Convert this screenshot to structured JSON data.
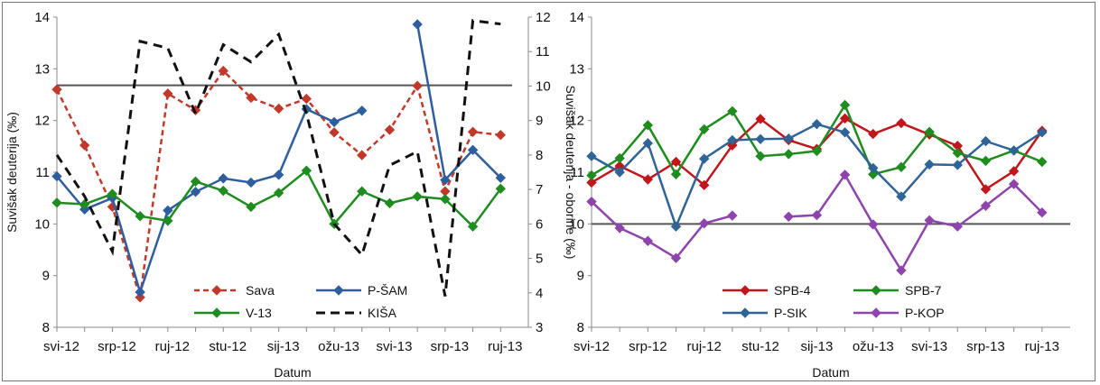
{
  "chart_data": [
    {
      "type": "line",
      "xlabel": "Datum",
      "ylabel": "Suvišak deuterija (‰)",
      "y2label": "Suvišak deuterija - oborine (‰)",
      "xticks": [
        "svi-12",
        "srp-12",
        "ruj-12",
        "stu-12",
        "sij-13",
        "ožu-13",
        "svi-13",
        "srp-13",
        "ruj-13"
      ],
      "ylim": [
        8,
        14
      ],
      "yticks": [
        "8",
        "9",
        "10",
        "11",
        "12",
        "13",
        "14"
      ],
      "y2lim": [
        3,
        12
      ],
      "y2ticks": [
        "3",
        "4",
        "5",
        "6",
        "7",
        "8",
        "9",
        "10",
        "11",
        "12"
      ],
      "xlim": [
        0,
        17
      ],
      "reference_line": 12.68,
      "series": [
        {
          "name": "Sava",
          "axis": "left",
          "color": "#c0392b",
          "style": "dashed",
          "marker": "diamond",
          "x": [
            0,
            1,
            2,
            3,
            4,
            5,
            6,
            7,
            8,
            9,
            10,
            11,
            12,
            13,
            14,
            15,
            16
          ],
          "y": [
            12.6,
            11.52,
            10.33,
            8.58,
            12.52,
            12.2,
            12.96,
            12.44,
            12.23,
            12.42,
            11.77,
            11.33,
            11.82,
            12.67,
            10.63,
            11.78,
            11.72
          ]
        },
        {
          "name": "P-ŠAM",
          "axis": "left",
          "color": "#2e5e9e",
          "style": "solid",
          "marker": "diamond",
          "x": [
            0,
            1,
            2,
            3,
            4,
            5,
            6,
            7,
            8,
            9,
            10,
            11,
            null,
            13,
            14,
            15,
            16
          ],
          "y": [
            10.92,
            10.28,
            10.5,
            8.68,
            10.26,
            10.62,
            10.88,
            10.8,
            10.95,
            12.22,
            11.97,
            12.19,
            null,
            13.86,
            10.85,
            11.43,
            10.89
          ]
        },
        {
          "name": "V-13",
          "axis": "left",
          "color": "#1e8c1e",
          "style": "solid",
          "marker": "diamond",
          "x": [
            0,
            1,
            2,
            3,
            4,
            5,
            6,
            7,
            8,
            9,
            10,
            11,
            12,
            13,
            14,
            15,
            16
          ],
          "y": [
            10.41,
            10.38,
            10.58,
            10.15,
            10.06,
            10.82,
            10.64,
            10.33,
            10.6,
            11.03,
            10.0,
            10.63,
            10.4,
            10.53,
            10.48,
            9.95,
            10.68
          ]
        },
        {
          "name": "KIŠA",
          "axis": "right",
          "color": "#111111",
          "style": "dashed",
          "marker": "none",
          "x": [
            0,
            1,
            2,
            3,
            4,
            5,
            6,
            7,
            8,
            9,
            10,
            11,
            12,
            13,
            14,
            15,
            16
          ],
          "y": [
            8.0,
            6.8,
            5.2,
            11.3,
            11.1,
            9.2,
            11.2,
            10.7,
            11.5,
            9.2,
            6.0,
            5.1,
            7.7,
            8.1,
            3.9,
            11.9,
            11.8
          ]
        }
      ]
    },
    {
      "type": "line",
      "xlabel": "Datum",
      "ylabel": "",
      "xticks": [
        "svi-12",
        "srp-12",
        "ruj-12",
        "stu-12",
        "sij-13",
        "ožu-13",
        "svi-13",
        "srp-13",
        "ruj-13"
      ],
      "ylim": [
        8,
        14
      ],
      "yticks": [
        "8",
        "9",
        "10",
        "11",
        "12",
        "13",
        "14"
      ],
      "xlim": [
        0,
        17
      ],
      "reference_line": 10,
      "series": [
        {
          "name": "SPB-4",
          "color": "#c0161c",
          "marker": "diamond",
          "x": [
            0,
            1,
            2,
            3,
            4,
            5,
            6,
            7,
            8,
            9,
            10,
            11,
            12,
            13,
            14,
            15,
            16
          ],
          "y": [
            10.8,
            11.12,
            10.86,
            11.2,
            10.75,
            11.52,
            12.03,
            11.62,
            11.45,
            12.04,
            11.74,
            11.95,
            11.73,
            11.51,
            10.67,
            11.02,
            11.8
          ]
        },
        {
          "name": "SPB-7",
          "color": "#1e8c1e",
          "marker": "diamond",
          "x": [
            0,
            1,
            2,
            3,
            4,
            5,
            6,
            7,
            8,
            9,
            10,
            11,
            12,
            13,
            14,
            15,
            16
          ],
          "y": [
            10.94,
            11.27,
            11.91,
            10.96,
            11.83,
            12.18,
            11.31,
            11.35,
            11.41,
            12.3,
            10.96,
            11.1,
            11.78,
            11.37,
            11.22,
            11.42,
            11.2
          ]
        },
        {
          "name": "P-SIK",
          "color": "#2e6496",
          "marker": "diamond",
          "x": [
            0,
            1,
            2,
            3,
            4,
            5,
            6,
            7,
            8,
            9,
            10,
            11,
            12,
            13,
            14,
            15,
            16
          ],
          "y": [
            11.31,
            11.0,
            11.56,
            9.95,
            11.26,
            11.62,
            11.64,
            11.65,
            11.93,
            11.77,
            11.08,
            10.53,
            11.15,
            11.14,
            11.6,
            11.42,
            11.77
          ]
        },
        {
          "name": "P-KOP",
          "color": "#8e44ad",
          "marker": "diamond",
          "x": [
            0,
            1,
            2,
            3,
            4,
            5,
            null,
            7,
            8,
            9,
            10,
            11,
            12,
            13,
            14,
            15,
            16
          ],
          "y": [
            10.43,
            9.92,
            9.67,
            9.34,
            10.01,
            10.16,
            null,
            10.14,
            10.17,
            10.95,
            9.99,
            9.1,
            10.07,
            9.95,
            10.35,
            10.77,
            10.22
          ]
        }
      ]
    }
  ]
}
